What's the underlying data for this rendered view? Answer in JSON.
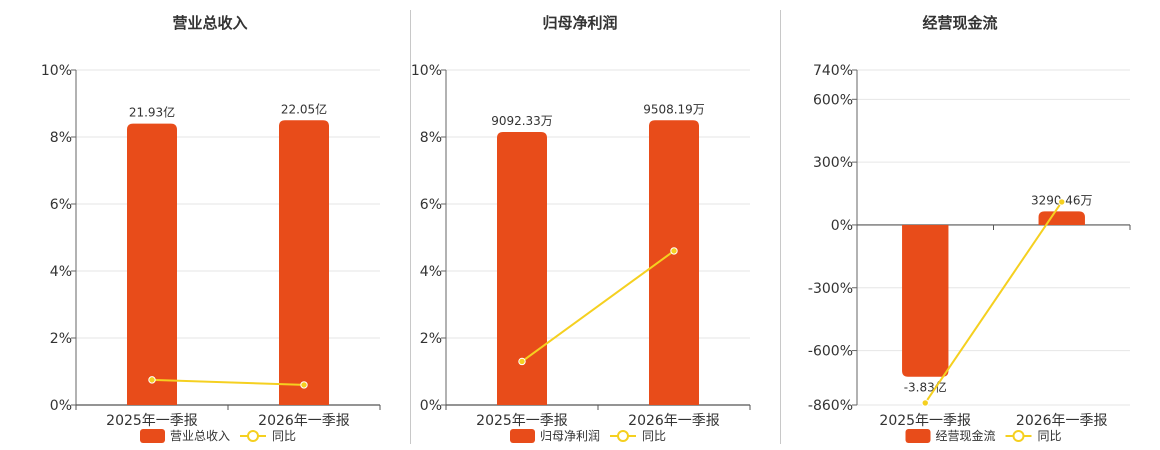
{
  "chart_data": [
    {
      "type": "bar",
      "title": "营业总收入",
      "categories": [
        "2025年一季报",
        "2026年一季报"
      ],
      "bar_axis": {
        "ticks": [
          0,
          2,
          4,
          6,
          8,
          10
        ],
        "tick_labels": [
          "0%",
          "2%",
          "4%",
          "6%",
          "8%",
          "10%"
        ],
        "ylim": [
          0,
          10
        ]
      },
      "series": [
        {
          "name": "营业总收入",
          "kind": "bar",
          "values": [
            8.4,
            8.5
          ],
          "labels": [
            "21.93亿",
            "22.05亿"
          ],
          "color": "#e84c1a"
        },
        {
          "name": "同比",
          "kind": "line",
          "values": [
            0.75,
            0.6
          ],
          "color": "#f5d020"
        }
      ],
      "legend": "bottom",
      "grid": true
    },
    {
      "type": "bar",
      "title": "归母净利润",
      "categories": [
        "2025年一季报",
        "2026年一季报"
      ],
      "bar_axis": {
        "ticks": [
          0,
          2,
          4,
          6,
          8,
          10
        ],
        "tick_labels": [
          "0%",
          "2%",
          "4%",
          "6%",
          "8%",
          "10%"
        ],
        "ylim": [
          0,
          10
        ]
      },
      "series": [
        {
          "name": "归母净利润",
          "kind": "bar",
          "values": [
            8.15,
            8.5
          ],
          "labels": [
            "9092.33万",
            "9508.19万"
          ],
          "color": "#e84c1a"
        },
        {
          "name": "同比",
          "kind": "line",
          "values": [
            1.3,
            4.6
          ],
          "color": "#f5d020"
        }
      ],
      "legend": "bottom",
      "grid": true
    },
    {
      "type": "bar",
      "title": "经营现金流",
      "categories": [
        "2025年一季报",
        "2026年一季报"
      ],
      "bar_axis": {
        "ticks": [
          -860,
          -600,
          -300,
          0,
          300,
          600,
          740
        ],
        "tick_labels": [
          "-860%",
          "-600%",
          "-300%",
          "0%",
          "300%",
          "600%",
          "740%"
        ],
        "ylim": [
          -860,
          740
        ]
      },
      "series": [
        {
          "name": "经营现金流",
          "kind": "bar",
          "values": [
            -725,
            65
          ],
          "labels": [
            "-3.83亿",
            "3290.46万"
          ],
          "color": "#e84c1a"
        },
        {
          "name": "同比",
          "kind": "line",
          "values": [
            -850,
            110
          ],
          "color": "#f5d020"
        }
      ],
      "legend": "bottom",
      "grid": true
    }
  ]
}
